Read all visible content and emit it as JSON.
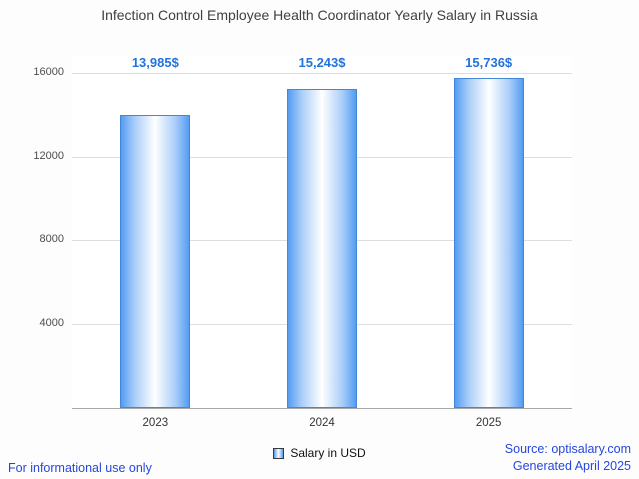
{
  "chart_data": {
    "type": "bar",
    "title": "Infection Control Employee Health Coordinator Yearly Salary in Russia",
    "categories": [
      "2023",
      "2024",
      "2025"
    ],
    "values": [
      13985,
      15243,
      15736
    ],
    "value_labels": [
      "13,985$",
      "15,243$",
      "15,736$"
    ],
    "series": [
      {
        "name": "Salary in USD",
        "values": [
          13985,
          15243,
          15736
        ]
      }
    ],
    "xlabel": "",
    "ylabel": "",
    "ylim": [
      0,
      16800
    ],
    "yticks": [
      4000,
      8000,
      12000,
      16000
    ],
    "grid": true,
    "legend_position": "bottom",
    "bar_gradient": [
      "#549cf3",
      "#a9cdf8",
      "#ffffff"
    ],
    "value_label_color": "#2273dc"
  },
  "legend": {
    "label": "Salary in USD"
  },
  "footer": {
    "left": "For informational use only",
    "source": "Source: optisalary.com",
    "generated": "Generated April 2025"
  },
  "colors": {
    "footer_link": "#2547dd",
    "title": "#404040"
  }
}
